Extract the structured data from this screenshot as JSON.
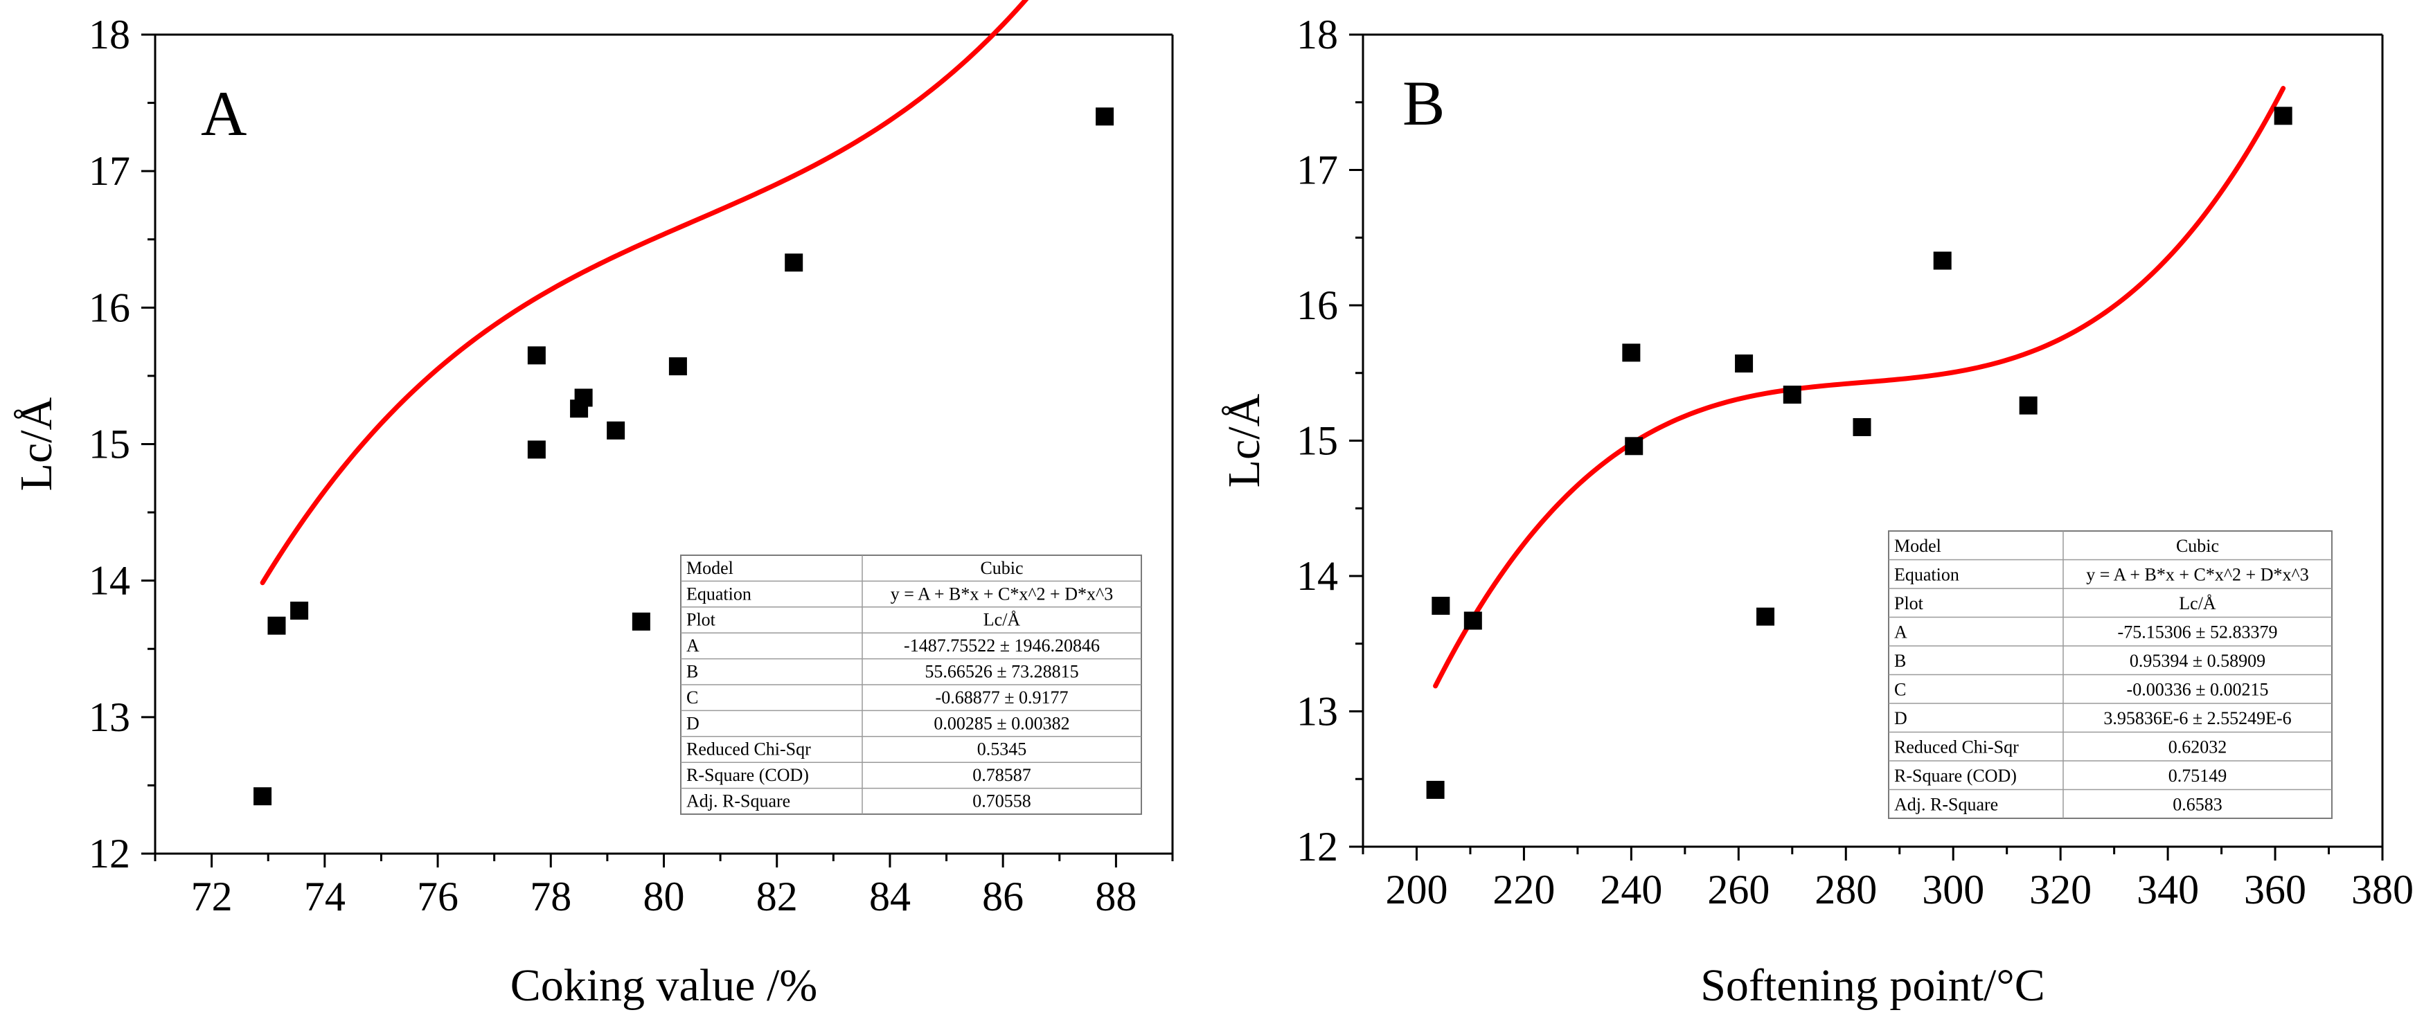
{
  "chart_data": [
    {
      "type": "scatter",
      "panel_label": "A",
      "xlabel": "Coking value /%",
      "ylabel": "Lc/Å",
      "xlim": [
        71,
        89
      ],
      "ylim": [
        12,
        18
      ],
      "xticks": [
        72,
        74,
        76,
        78,
        80,
        82,
        84,
        86,
        88
      ],
      "yticks": [
        12,
        13,
        14,
        15,
        16,
        17,
        18
      ],
      "grid": false,
      "series": [
        {
          "name": "Lc/Å",
          "marker": "square",
          "color": "#000000",
          "points": [
            {
              "x": 72.9,
              "y": 12.42
            },
            {
              "x": 73.15,
              "y": 13.67
            },
            {
              "x": 73.55,
              "y": 13.78
            },
            {
              "x": 77.75,
              "y": 15.65
            },
            {
              "x": 77.75,
              "y": 14.96
            },
            {
              "x": 78.5,
              "y": 15.26
            },
            {
              "x": 78.58,
              "y": 15.34
            },
            {
              "x": 79.15,
              "y": 15.1
            },
            {
              "x": 79.6,
              "y": 13.7
            },
            {
              "x": 80.25,
              "y": 15.57
            },
            {
              "x": 82.3,
              "y": 16.33
            },
            {
              "x": 87.8,
              "y": 17.4
            }
          ]
        },
        {
          "name": "Cubic fit",
          "type": "line",
          "color": "#ff0000",
          "function": "cubic",
          "coefficients": {
            "A": -1487.75522,
            "B": 55.66526,
            "C": -0.68877,
            "D": 0.00285
          },
          "x_range": [
            72.9,
            87.8
          ]
        }
      ],
      "fit_table": [
        {
          "label": "Model",
          "value": "Cubic"
        },
        {
          "label": "Equation",
          "value": "y = A + B*x + C*x^2 + D*x^3"
        },
        {
          "label": "Plot",
          "value": "Lc/Å"
        },
        {
          "label": "A",
          "value": "-1487.75522 ± 1946.20846"
        },
        {
          "label": "B",
          "value": "55.66526 ± 73.28815"
        },
        {
          "label": "C",
          "value": "-0.68877 ± 0.9177"
        },
        {
          "label": "D",
          "value": "0.00285 ± 0.00382"
        },
        {
          "label": "Reduced Chi-Sqr",
          "value": "0.5345"
        },
        {
          "label": "R-Square (COD)",
          "value": "0.78587"
        },
        {
          "label": "Adj. R-Square",
          "value": "0.70558"
        }
      ]
    },
    {
      "type": "scatter",
      "panel_label": "B",
      "xlabel": "Softening point/°C",
      "ylabel": "Lc/Å",
      "xlim": [
        190,
        380
      ],
      "ylim": [
        12,
        18
      ],
      "xticks": [
        200,
        220,
        240,
        260,
        280,
        300,
        320,
        340,
        360,
        380
      ],
      "yticks": [
        12,
        13,
        14,
        15,
        16,
        17,
        18
      ],
      "grid": false,
      "series": [
        {
          "name": "Lc/Å",
          "marker": "square",
          "color": "#000000",
          "points": [
            {
              "x": 203.5,
              "y": 12.42
            },
            {
              "x": 204.5,
              "y": 13.78
            },
            {
              "x": 210.5,
              "y": 13.67
            },
            {
              "x": 240.0,
              "y": 15.65
            },
            {
              "x": 240.5,
              "y": 14.96
            },
            {
              "x": 261.0,
              "y": 15.57
            },
            {
              "x": 265.0,
              "y": 13.7
            },
            {
              "x": 270.0,
              "y": 15.34
            },
            {
              "x": 283.0,
              "y": 15.1
            },
            {
              "x": 298.0,
              "y": 16.33
            },
            {
              "x": 314.0,
              "y": 15.26
            },
            {
              "x": 361.5,
              "y": 17.4
            }
          ]
        },
        {
          "name": "Cubic fit",
          "type": "line",
          "color": "#ff0000",
          "function": "cubic",
          "coefficients": {
            "A": -75.15306,
            "B": 0.95394,
            "C": -0.00336,
            "D": 3.95836e-06
          },
          "x_range": [
            203.5,
            361.5
          ]
        }
      ],
      "fit_table": [
        {
          "label": "Model",
          "value": "Cubic"
        },
        {
          "label": "Equation",
          "value": "y = A + B*x + C*x^2 + D*x^3"
        },
        {
          "label": "Plot",
          "value": "Lc/Å"
        },
        {
          "label": "A",
          "value": "-75.15306 ± 52.83379"
        },
        {
          "label": "B",
          "value": "0.95394 ± 0.58909"
        },
        {
          "label": "C",
          "value": "-0.00336 ± 0.00215"
        },
        {
          "label": "D",
          "value": "3.95836E-6 ± 2.55249E-6"
        },
        {
          "label": "Reduced Chi-Sqr",
          "value": "0.62032"
        },
        {
          "label": "R-Square (COD)",
          "value": "0.75149"
        },
        {
          "label": "Adj. R-Square",
          "value": "0.6583"
        }
      ]
    }
  ]
}
